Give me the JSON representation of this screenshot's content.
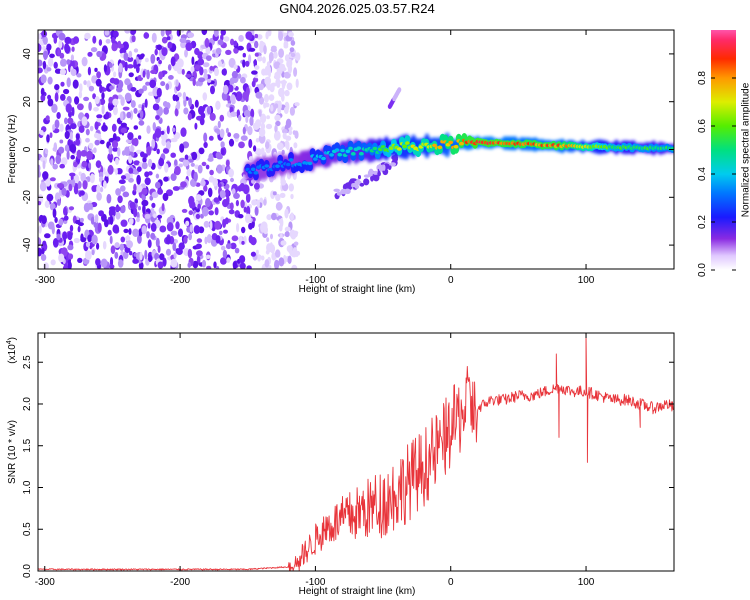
{
  "title": "GN04.2026.025.03.57.R24",
  "chart_data": [
    {
      "type": "heatmap",
      "xlabel": "Height of straight line (km)",
      "ylabel": "Frequency (Hz)",
      "xlim": [
        -305,
        165
      ],
      "ylim": [
        -50,
        50
      ],
      "x_ticks": [
        "-300",
        "-200",
        "-100",
        "0",
        "100"
      ],
      "x_tick_values": [
        -300,
        -200,
        -100,
        0,
        100
      ],
      "y_ticks": [
        "-40",
        "-20",
        "0",
        "20",
        "40"
      ],
      "y_tick_values": [
        -40,
        -20,
        0,
        20,
        40
      ],
      "colorbar": {
        "label": "Normalized spectral amplitude",
        "range": [
          0.0,
          1.0
        ],
        "ticks": [
          "0.0",
          "0.2",
          "0.4",
          "0.6",
          "0.8"
        ],
        "tick_values": [
          0.0,
          0.2,
          0.4,
          0.6,
          0.8
        ]
      },
      "ridge": {
        "description": "main frequency ridge",
        "x": [
          -150,
          -120,
          -100,
          -80,
          -60,
          -40,
          -20,
          0,
          20,
          50,
          80,
          120,
          160
        ],
        "y": [
          -9,
          -6,
          -4,
          -1,
          -0.5,
          1,
          1.5,
          2,
          3,
          2.5,
          1.5,
          1,
          0.5
        ],
        "amplitude": [
          0.35,
          0.35,
          0.4,
          0.45,
          0.5,
          0.7,
          0.75,
          0.85,
          0.95,
          0.9,
          0.9,
          0.6,
          0.55
        ]
      },
      "branch": {
        "x": [
          -85,
          -70,
          -55,
          -40
        ],
        "y": [
          -18,
          -14,
          -10,
          -4
        ]
      },
      "upper_streak": {
        "x": [
          -45,
          -38
        ],
        "y": [
          18,
          25
        ]
      },
      "noise_region_x": [
        -305,
        -143
      ]
    },
    {
      "type": "line",
      "xlabel": "Height of straight line (km)",
      "ylabel": "SNR (10 * v/v)",
      "y_multiplier": "(x10",
      "y_multiplier_exp": "4",
      "y_multiplier_close": ")",
      "xlim": [
        -305,
        165
      ],
      "ylim": [
        0,
        2.85
      ],
      "x_ticks": [
        "-300",
        "-200",
        "-100",
        "0",
        "100"
      ],
      "x_tick_values": [
        -300,
        -200,
        -100,
        0,
        100
      ],
      "y_ticks": [
        "0.0",
        "0.5",
        "1.0",
        "1.5",
        "2.0",
        "2.5"
      ],
      "y_tick_values": [
        0.0,
        0.5,
        1.0,
        1.5,
        2.0,
        2.5
      ],
      "color": "#e8343a",
      "series": [
        {
          "name": "SNR",
          "x": [
            -305,
            -250,
            -200,
            -150,
            -120,
            -110,
            -100,
            -90,
            -80,
            -70,
            -60,
            -50,
            -40,
            -30,
            -20,
            -10,
            0,
            10,
            20,
            30,
            40,
            50,
            60,
            70,
            80,
            90,
            100,
            110,
            120,
            130,
            140,
            150,
            160,
            165
          ],
          "y": [
            0.02,
            0.02,
            0.02,
            0.02,
            0.05,
            0.12,
            0.3,
            0.45,
            0.5,
            0.55,
            0.6,
            0.65,
            0.75,
            0.9,
            1.05,
            1.25,
            1.5,
            1.75,
            1.95,
            2.05,
            2.05,
            2.1,
            2.1,
            2.15,
            2.2,
            2.15,
            2.15,
            2.1,
            2.05,
            2.05,
            2.0,
            1.95,
            2.0,
            1.95
          ]
        }
      ],
      "spikes": [
        {
          "x": 78,
          "y": 2.6
        },
        {
          "x": 80,
          "y": 1.6
        },
        {
          "x": 100,
          "y": 2.85
        },
        {
          "x": 101,
          "y": 1.3
        },
        {
          "x": 140,
          "y": 1.72
        }
      ]
    }
  ]
}
